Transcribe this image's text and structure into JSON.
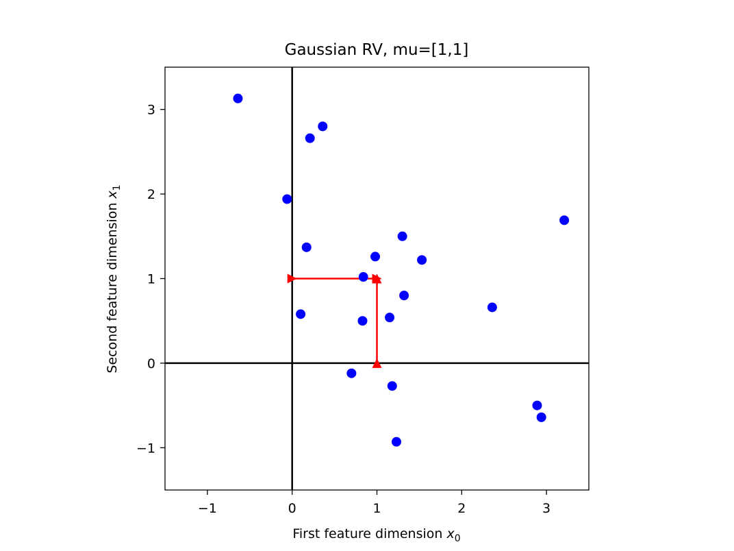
{
  "chart_data": {
    "type": "scatter",
    "title": "Gaussian RV, mu=[1,1]",
    "xlabel": {
      "main": "First feature dimension ",
      "var": "x",
      "sub": "0"
    },
    "ylabel": {
      "main": "Second feature dimension ",
      "var": "x",
      "sub": "1"
    },
    "xlim": [
      -1.5,
      3.5
    ],
    "ylim": [
      -1.5,
      3.5
    ],
    "xticks": [
      -1,
      0,
      1,
      2,
      3
    ],
    "yticks": [
      -1,
      0,
      1,
      2,
      3
    ],
    "xtick_labels": [
      "−1",
      "0",
      "1",
      "2",
      "3"
    ],
    "ytick_labels": [
      "−1",
      "0",
      "1",
      "2",
      "3"
    ],
    "grid": false,
    "reference_lines": {
      "x": 0,
      "y": 0,
      "color": "#000000"
    },
    "points_color": "#0000ff",
    "points": [
      {
        "x": -0.64,
        "y": 3.13
      },
      {
        "x": 0.36,
        "y": 2.8
      },
      {
        "x": 0.21,
        "y": 2.66
      },
      {
        "x": -0.06,
        "y": 1.94
      },
      {
        "x": 3.21,
        "y": 1.69
      },
      {
        "x": 0.17,
        "y": 1.37
      },
      {
        "x": 1.3,
        "y": 1.5
      },
      {
        "x": 0.98,
        "y": 1.26
      },
      {
        "x": 1.53,
        "y": 1.22
      },
      {
        "x": 0.84,
        "y": 1.02
      },
      {
        "x": 1.32,
        "y": 0.8
      },
      {
        "x": 2.36,
        "y": 0.66
      },
      {
        "x": 0.1,
        "y": 0.58
      },
      {
        "x": 0.83,
        "y": 0.5
      },
      {
        "x": 1.15,
        "y": 0.54
      },
      {
        "x": 0.7,
        "y": -0.12
      },
      {
        "x": 1.18,
        "y": -0.27
      },
      {
        "x": 2.89,
        "y": -0.5
      },
      {
        "x": 2.94,
        "y": -0.64
      },
      {
        "x": 1.23,
        "y": -0.93
      }
    ],
    "vectors_color": "#ff0000",
    "vectors": [
      {
        "from": [
          0,
          1
        ],
        "to": [
          1,
          1
        ],
        "marker": "right-triangle"
      },
      {
        "from": [
          1,
          0
        ],
        "to": [
          1,
          1
        ],
        "marker": "up-triangle"
      }
    ]
  }
}
